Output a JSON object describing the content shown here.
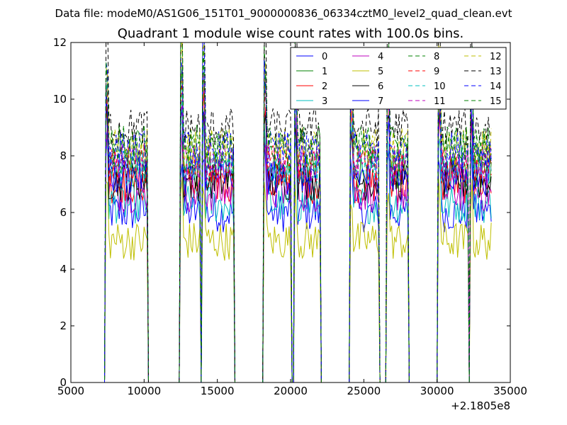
{
  "chart_data": {
    "type": "line",
    "suptitle": "Data file: modeM0/AS1G06_151T01_9000000836_06334cztM0_level2_quad_clean.evt",
    "title": "Quadrant 1 module wise count rates with 100.0s bins.",
    "xlabel": "",
    "ylabel": "",
    "xlim": [
      5000,
      35000
    ],
    "ylim": [
      0,
      12
    ],
    "x_offset_label": "+2.1805e8",
    "xticks": [
      5000,
      10000,
      15000,
      20000,
      25000,
      30000,
      35000
    ],
    "xtick_labels": [
      "5000",
      "10000",
      "15000",
      "20000",
      "25000",
      "30000",
      "35000"
    ],
    "yticks": [
      0,
      2,
      4,
      6,
      8,
      10,
      12
    ],
    "ytick_labels": [
      "0",
      "2",
      "4",
      "6",
      "8",
      "10",
      "12"
    ],
    "grid": false,
    "legend_placement": "top-right",
    "legend_columns": 4,
    "bin_width": 100,
    "active_intervals": [
      [
        7400,
        10200
      ],
      [
        12500,
        13800
      ],
      [
        14000,
        16100
      ],
      [
        18200,
        20000
      ],
      [
        20300,
        22000
      ],
      [
        24100,
        26000
      ],
      [
        26600,
        28000
      ],
      [
        30100,
        32100
      ],
      [
        32300,
        33700
      ]
    ],
    "series": [
      {
        "name": "0",
        "color": "#0000ff",
        "dash": "solid",
        "level": 6.0
      },
      {
        "name": "1",
        "color": "#008000",
        "dash": "solid",
        "level": 7.5
      },
      {
        "name": "2",
        "color": "#ff0000",
        "dash": "solid",
        "level": 7.0
      },
      {
        "name": "3",
        "color": "#00bfbf",
        "dash": "solid",
        "level": 6.3
      },
      {
        "name": "4",
        "color": "#bf00bf",
        "dash": "solid",
        "level": 6.7
      },
      {
        "name": "5",
        "color": "#bfbf00",
        "dash": "solid",
        "level": 5.0
      },
      {
        "name": "6",
        "color": "#000000",
        "dash": "solid",
        "level": 7.1
      },
      {
        "name": "7",
        "color": "#0000ff",
        "dash": "solid",
        "level": 7.3
      },
      {
        "name": "8",
        "color": "#008000",
        "dash": "dashed",
        "level": 8.1
      },
      {
        "name": "9",
        "color": "#ff0000",
        "dash": "dashed",
        "level": 7.7
      },
      {
        "name": "10",
        "color": "#00bfbf",
        "dash": "dashed",
        "level": 7.6
      },
      {
        "name": "11",
        "color": "#bf00bf",
        "dash": "dashed",
        "level": 7.8
      },
      {
        "name": "12",
        "color": "#bfbf00",
        "dash": "dashed",
        "level": 8.3
      },
      {
        "name": "13",
        "color": "#000000",
        "dash": "dashed",
        "level": 9.0
      },
      {
        "name": "14",
        "color": "#0000ff",
        "dash": "dashed",
        "level": 8.2
      },
      {
        "name": "15",
        "color": "#008000",
        "dash": "dashed",
        "level": 8.4
      }
    ]
  }
}
